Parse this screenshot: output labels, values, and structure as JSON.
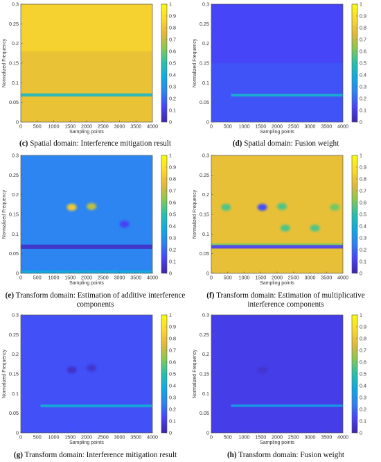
{
  "colors": {
    "cmap": [
      "#3e26a8",
      "#4743f8",
      "#2f82f2",
      "#10a9e0",
      "#27c0ad",
      "#86c953",
      "#e2b83a",
      "#fbd92e",
      "#f9fb0e"
    ],
    "axis": "#555555"
  },
  "chart_data": [
    {
      "type": "heatmap",
      "panel": "c",
      "caption_letter": "(c)",
      "caption_text": "Spatial domain: Interference mitigation result",
      "xlabel": "Sampling points",
      "ylabel": "Normalized Frequency",
      "xlim": [
        0,
        4000
      ],
      "ylim": [
        0,
        0.3
      ],
      "xticks": [
        0,
        500,
        1000,
        1500,
        2000,
        2500,
        3000,
        3500,
        4000
      ],
      "yticks": [
        0,
        0.05,
        0.1,
        0.15,
        0.2,
        0.25,
        0.3
      ],
      "colorbar_ticks": [
        0,
        0.1,
        0.2,
        0.3,
        0.4,
        0.5,
        0.6,
        0.7,
        0.8,
        0.9,
        1
      ],
      "background_value": 0.85,
      "features": [
        {
          "kind": "band",
          "x": [
            0,
            4000
          ],
          "y": [
            0.0,
            0.18
          ],
          "value": 0.78
        },
        {
          "kind": "band",
          "x": [
            0,
            4000
          ],
          "y": [
            0.065,
            0.073
          ],
          "value": 0.45
        }
      ]
    },
    {
      "type": "heatmap",
      "panel": "d",
      "caption_letter": "(d)",
      "caption_text": "Spatial domain: Fusion weight",
      "xlabel": "Sampling points",
      "ylabel": "Normalized Frequency",
      "xlim": [
        0,
        4000
      ],
      "ylim": [
        0,
        0.3
      ],
      "xticks": [
        0,
        500,
        1000,
        1500,
        2000,
        2500,
        3000,
        3500,
        4000
      ],
      "yticks": [
        0,
        0.05,
        0.1,
        0.15,
        0.2,
        0.25,
        0.3
      ],
      "colorbar_ticks": [
        0,
        0.1,
        0.2,
        0.3,
        0.4,
        0.5,
        0.6,
        0.7,
        0.8,
        0.9,
        1
      ],
      "background_value": 0.13,
      "features": [
        {
          "kind": "band",
          "x": [
            0,
            4000
          ],
          "y": [
            0.0,
            0.15
          ],
          "value": 0.16
        },
        {
          "kind": "band",
          "x": [
            600,
            4000
          ],
          "y": [
            0.065,
            0.072
          ],
          "value": 0.42
        }
      ]
    },
    {
      "type": "heatmap",
      "panel": "e",
      "caption_letter": "(e)",
      "caption_text": "Transform domain: Estimation of additive interference components",
      "xlabel": "Sampling points",
      "ylabel": "Normalized Frequency",
      "xlim": [
        0,
        4000
      ],
      "ylim": [
        0,
        0.3
      ],
      "xticks": [
        0,
        500,
        1000,
        1500,
        2000,
        2500,
        3000,
        3500,
        4000
      ],
      "yticks": [
        0,
        0.05,
        0.1,
        0.15,
        0.2,
        0.25,
        0.3
      ],
      "colorbar_ticks": [
        0,
        0.1,
        0.2,
        0.3,
        0.4,
        0.5,
        0.6,
        0.7,
        0.8,
        0.9,
        1
      ],
      "background_value": 0.26,
      "features": [
        {
          "kind": "band",
          "x": [
            0,
            4000
          ],
          "y": [
            0.062,
            0.073
          ],
          "value": 0.05
        },
        {
          "kind": "band",
          "x": [
            0,
            4000
          ],
          "y": [
            0.0,
            0.007
          ],
          "value": 0.38
        },
        {
          "kind": "blob",
          "x": 1550,
          "y": 0.168,
          "value": 0.82
        },
        {
          "kind": "blob",
          "x": 2150,
          "y": 0.17,
          "value": 0.7
        },
        {
          "kind": "blob",
          "x": 3150,
          "y": 0.125,
          "value": 0.12
        }
      ]
    },
    {
      "type": "heatmap",
      "panel": "f",
      "caption_letter": "(f)",
      "caption_text": "Transform domain: Estimation of multiplicative interference components",
      "xlabel": "Sampling points",
      "ylabel": "Normalized Frequency",
      "xlim": [
        0,
        4000
      ],
      "ylim": [
        0,
        0.3
      ],
      "xticks": [
        0,
        500,
        1000,
        1500,
        2000,
        2500,
        3000,
        3500,
        4000
      ],
      "yticks": [
        0,
        0.05,
        0.1,
        0.15,
        0.2,
        0.25,
        0.3
      ],
      "colorbar_ticks": [
        0,
        0.1,
        0.2,
        0.3,
        0.4,
        0.5,
        0.6,
        0.7,
        0.8,
        0.9,
        1
      ],
      "background_value": 0.78,
      "features": [
        {
          "kind": "band",
          "x": [
            0,
            4000
          ],
          "y": [
            0.063,
            0.072
          ],
          "value": 0.12
        },
        {
          "kind": "band",
          "x": [
            0,
            4000
          ],
          "y": [
            0.072,
            0.076
          ],
          "value": 0.6
        },
        {
          "kind": "blob",
          "x": 1550,
          "y": 0.168,
          "value": 0.15
        },
        {
          "kind": "blob",
          "x": 2150,
          "y": 0.17,
          "value": 0.55
        },
        {
          "kind": "blob",
          "x": 450,
          "y": 0.168,
          "value": 0.55
        },
        {
          "kind": "blob",
          "x": 2250,
          "y": 0.115,
          "value": 0.55
        },
        {
          "kind": "blob",
          "x": 3150,
          "y": 0.115,
          "value": 0.55
        },
        {
          "kind": "blob",
          "x": 3750,
          "y": 0.168,
          "value": 0.6
        }
      ]
    },
    {
      "type": "heatmap",
      "panel": "g",
      "caption_letter": "(g)",
      "caption_text": "Transform domain: Interference mitigation result",
      "xlabel": "Sampling points",
      "ylabel": "Normalized Frequency",
      "xlim": [
        0,
        4000
      ],
      "ylim": [
        0,
        0.3
      ],
      "xticks": [
        0,
        500,
        1000,
        1500,
        2000,
        2500,
        3000,
        3500,
        4000
      ],
      "yticks": [
        0,
        0.05,
        0.1,
        0.15,
        0.2,
        0.25,
        0.3
      ],
      "colorbar_ticks": [
        0,
        0.1,
        0.2,
        0.3,
        0.4,
        0.5,
        0.6,
        0.7,
        0.8,
        0.9,
        1
      ],
      "background_value": 0.15,
      "features": [
        {
          "kind": "band",
          "x": [
            600,
            4000
          ],
          "y": [
            0.065,
            0.072
          ],
          "value": 0.4
        },
        {
          "kind": "blob",
          "x": 1550,
          "y": 0.16,
          "value": 0.05
        },
        {
          "kind": "blob",
          "x": 2150,
          "y": 0.165,
          "value": 0.06
        }
      ]
    },
    {
      "type": "heatmap",
      "panel": "h",
      "caption_letter": "(h)",
      "caption_text": "Transform domain: Fusion weight",
      "xlabel": "Sampling points",
      "ylabel": "Normalized Frequency",
      "xlim": [
        0,
        4000
      ],
      "ylim": [
        0,
        0.3
      ],
      "xticks": [
        0,
        500,
        1000,
        1500,
        2000,
        2500,
        3000,
        3500,
        4000
      ],
      "yticks": [
        0,
        0.05,
        0.1,
        0.15,
        0.2,
        0.25,
        0.3
      ],
      "colorbar_ticks": [
        0,
        0.1,
        0.2,
        0.3,
        0.4,
        0.5,
        0.6,
        0.7,
        0.8,
        0.9,
        1
      ],
      "background_value": 0.1,
      "features": [
        {
          "kind": "band",
          "x": [
            600,
            4000
          ],
          "y": [
            0.066,
            0.072
          ],
          "value": 0.35
        },
        {
          "kind": "blob",
          "x": 1550,
          "y": 0.16,
          "value": 0.06
        }
      ]
    }
  ]
}
